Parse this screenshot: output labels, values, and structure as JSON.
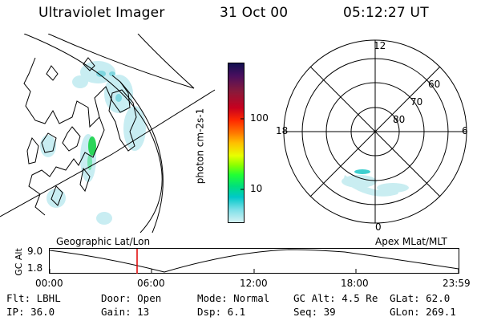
{
  "header": {
    "instrument": "Ultraviolet Imager",
    "date": "31 Oct 00",
    "time": "05:12:27 UT"
  },
  "colorbar": {
    "label": "photon cm-2s-1",
    "ticks": [
      "100",
      "10"
    ],
    "colors": [
      "#101050",
      "#4a0f5e",
      "#8a1a3a",
      "#c7001f",
      "#ff2a00",
      "#ff7a00",
      "#ffbf00",
      "#e8ff00",
      "#8cff00",
      "#22ff33",
      "#00e07a",
      "#00c8c8",
      "#7fe0e8",
      "#d8f2f4"
    ]
  },
  "polar_plot": {
    "mlt_labels": [
      "12",
      "18",
      "6",
      "0"
    ],
    "lat_labels": [
      "60",
      "70",
      "80"
    ]
  },
  "timeline": {
    "left_caption": "Geographic Lat/Lon",
    "right_caption": "Apex MLat/MLT",
    "axis_label": "GC Alt",
    "y_max": "9.0",
    "y_min": "1.8",
    "x_ticks": [
      "00:00",
      "06:00",
      "12:00",
      "18:00",
      "23:59"
    ],
    "marker_color": "#e00000"
  },
  "status": {
    "filter": "Flt: LBHL",
    "ip": "IP: 36.0",
    "door": "Door: Open",
    "gain": "Gain: 13",
    "mode": "Mode: Normal",
    "dsp": "Dsp:    6.1",
    "gc_alt": "GC Alt: 4.5 Re",
    "seq": "Seq: 39",
    "glat": "GLat:  62.0",
    "glon": "GLon: 269.1"
  }
}
